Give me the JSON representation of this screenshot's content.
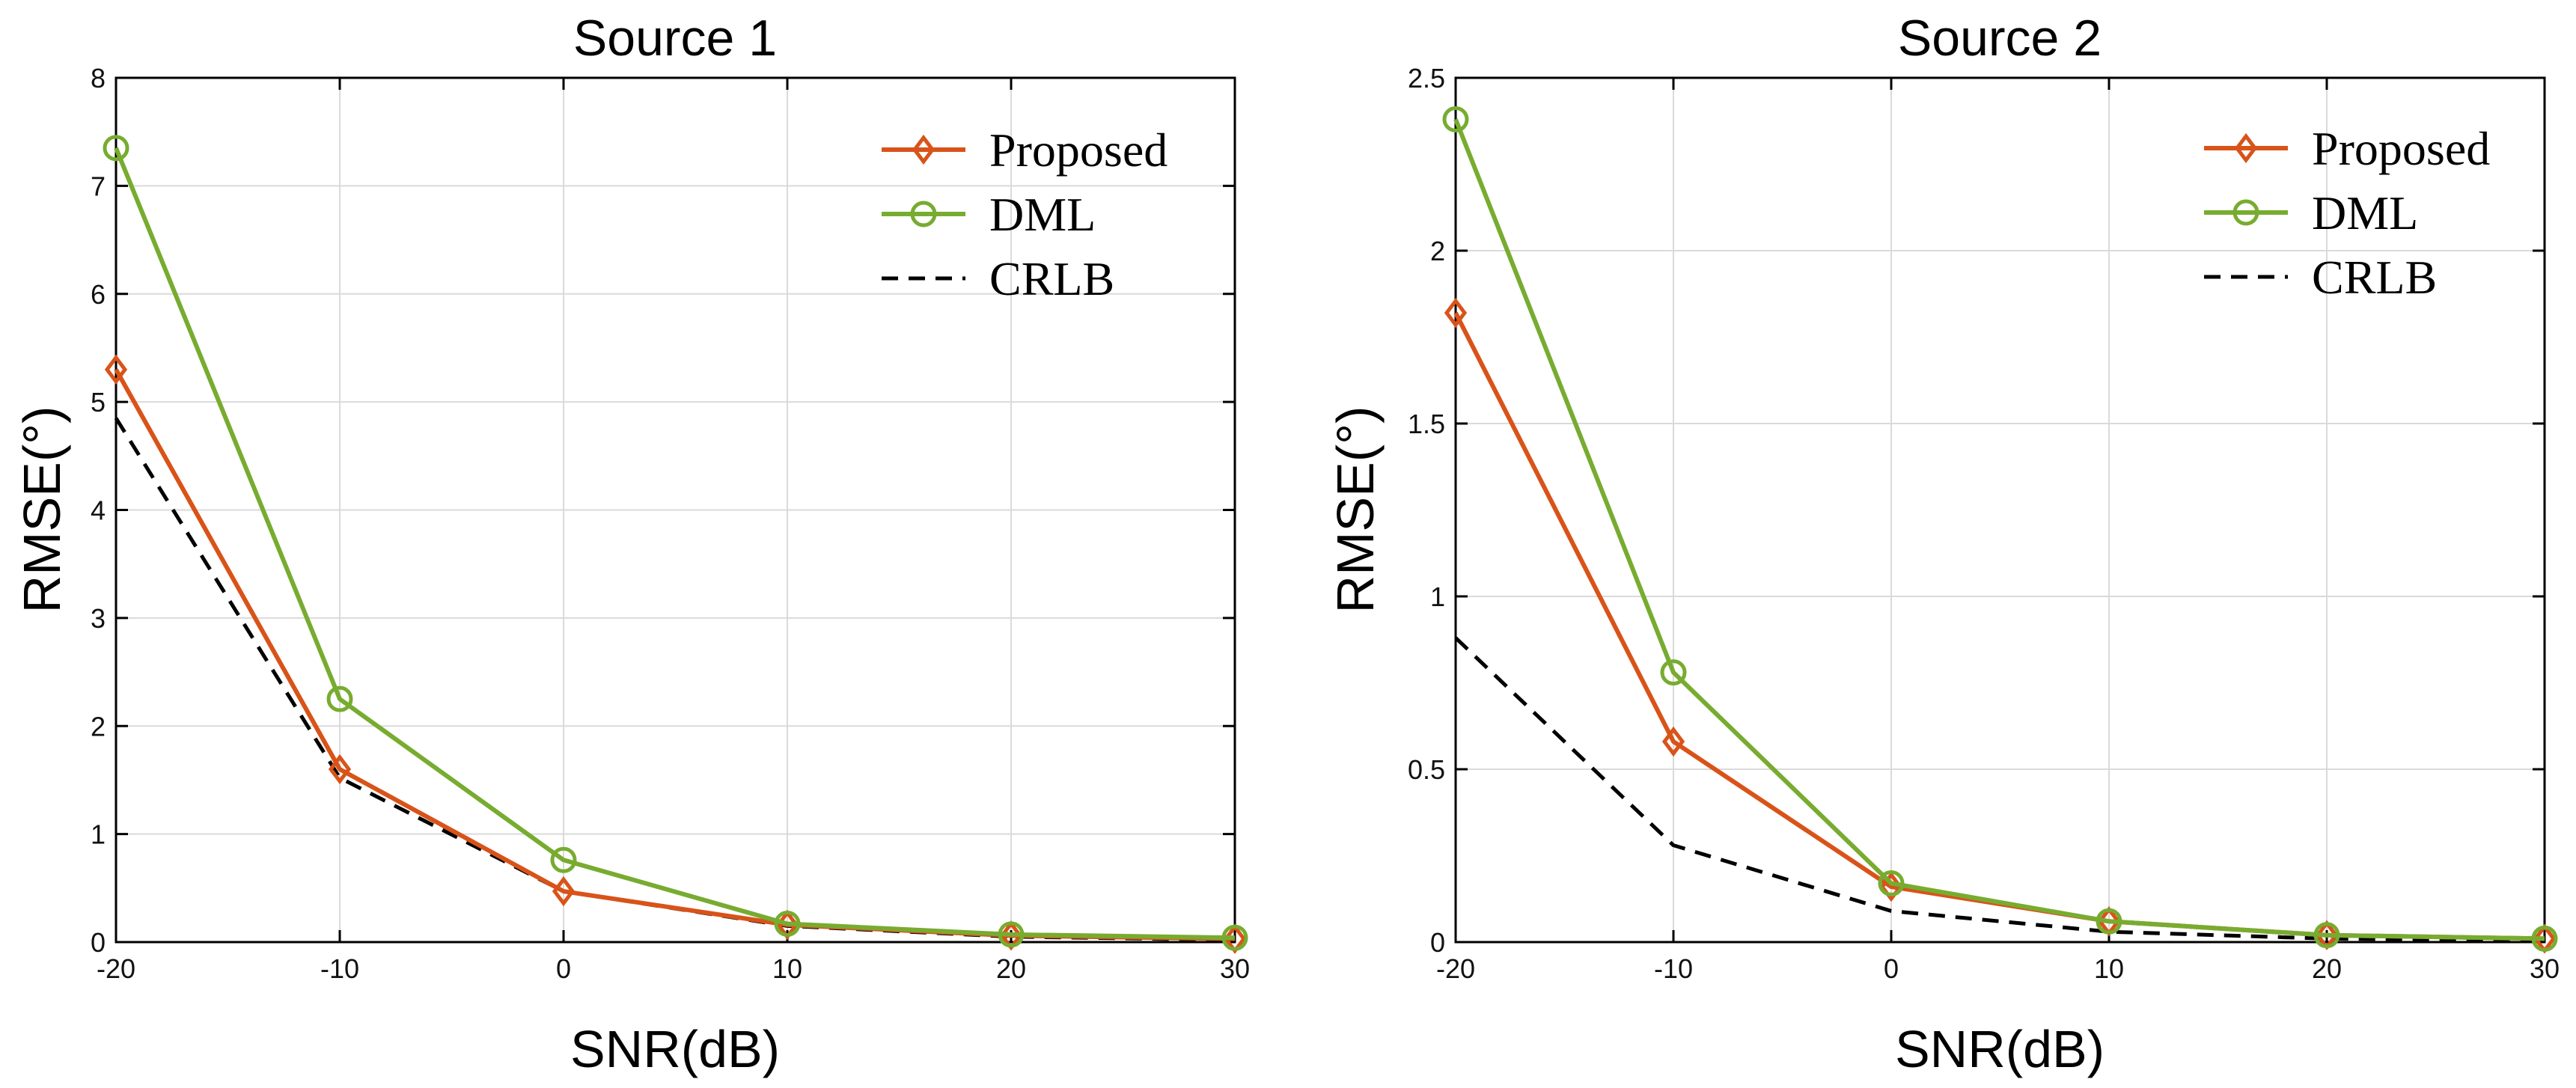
{
  "colors": {
    "proposed": "#D95319",
    "dml": "#77AC30",
    "crlb": "#000000",
    "grid": "#DADADA",
    "axis": "#000000"
  },
  "chart_data": [
    {
      "type": "line",
      "title": "Source 1",
      "xlabel": "SNR(dB)",
      "ylabel": "RMSE(°)",
      "x": [
        -20,
        -10,
        0,
        10,
        20,
        30
      ],
      "xlim": [
        -20,
        30
      ],
      "ylim": [
        0,
        8
      ],
      "xticks": [
        -20,
        -10,
        0,
        10,
        20,
        30
      ],
      "yticks": [
        0,
        1,
        2,
        3,
        4,
        5,
        6,
        7,
        8
      ],
      "xtick_labels": [
        "-20",
        "-10",
        "0",
        "10",
        "20",
        "30"
      ],
      "ytick_labels": [
        "0",
        "1",
        "2",
        "3",
        "4",
        "5",
        "6",
        "7",
        "8"
      ],
      "grid": true,
      "legend_position": "top-right",
      "series": [
        {
          "name": "Proposed",
          "marker": "diamond",
          "style": "solid",
          "color_key": "proposed",
          "values": [
            5.3,
            1.6,
            0.47,
            0.16,
            0.06,
            0.03
          ]
        },
        {
          "name": "DML",
          "marker": "circle",
          "style": "solid",
          "color_key": "dml",
          "values": [
            7.35,
            2.25,
            0.76,
            0.17,
            0.07,
            0.04
          ]
        },
        {
          "name": "CRLB",
          "marker": "none",
          "style": "dashed",
          "color_key": "crlb",
          "values": [
            4.85,
            1.52,
            0.47,
            0.15,
            0.05,
            0.02
          ]
        }
      ]
    },
    {
      "type": "line",
      "title": "Source 2",
      "xlabel": "SNR(dB)",
      "ylabel": "RMSE(°)",
      "x": [
        -20,
        -10,
        0,
        10,
        20,
        30
      ],
      "xlim": [
        -20,
        30
      ],
      "ylim": [
        0,
        2.5
      ],
      "xticks": [
        -20,
        -10,
        0,
        10,
        20,
        30
      ],
      "yticks": [
        0,
        0.5,
        1,
        1.5,
        2,
        2.5
      ],
      "xtick_labels": [
        "-20",
        "-10",
        "0",
        "10",
        "20",
        "30"
      ],
      "ytick_labels": [
        "0",
        "0.5",
        "1",
        "1.5",
        "2",
        "2.5"
      ],
      "grid": true,
      "legend_position": "top-right",
      "series": [
        {
          "name": "Proposed",
          "marker": "diamond",
          "style": "solid",
          "color_key": "proposed",
          "values": [
            1.82,
            0.58,
            0.16,
            0.06,
            0.02,
            0.01
          ]
        },
        {
          "name": "DML",
          "marker": "circle",
          "style": "solid",
          "color_key": "dml",
          "values": [
            2.38,
            0.78,
            0.17,
            0.06,
            0.02,
            0.01
          ]
        },
        {
          "name": "CRLB",
          "marker": "none",
          "style": "dashed",
          "color_key": "crlb",
          "values": [
            0.88,
            0.28,
            0.09,
            0.03,
            0.01,
            0.005
          ]
        }
      ]
    }
  ]
}
